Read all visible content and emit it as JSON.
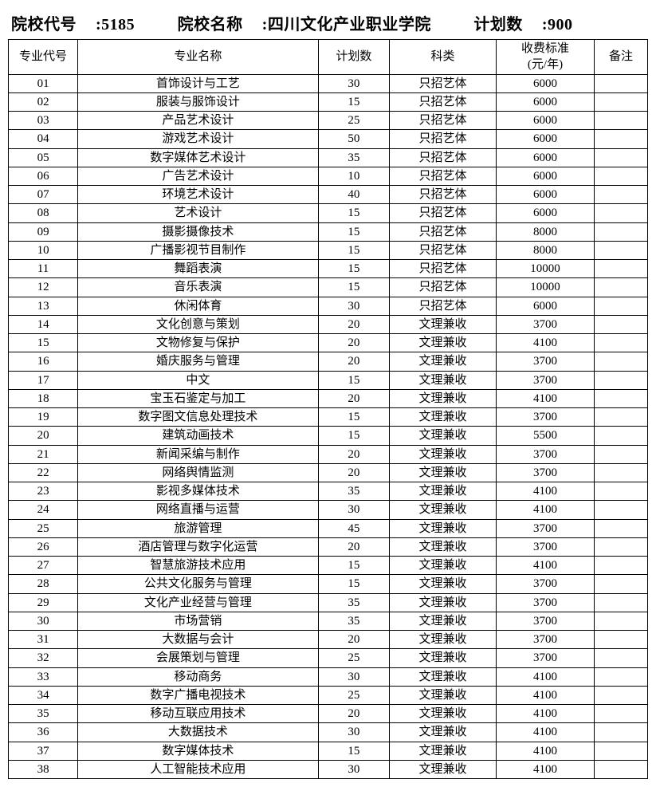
{
  "header": {
    "code_label": "院校代号",
    "code_value": "5185",
    "name_label": "院校名称",
    "name_value": "四川文化产业职业学院",
    "plan_label": "计划数",
    "plan_value": "900"
  },
  "columns": {
    "major_code": "专业代号",
    "major_name": "专业名称",
    "plan": "计划数",
    "category": "科类",
    "fee": "收费标准\n(元/年)",
    "note": "备注"
  },
  "rows": [
    {
      "code": "01",
      "name": "首饰设计与工艺",
      "plan": "30",
      "cat": "只招艺体",
      "fee": "6000",
      "note": ""
    },
    {
      "code": "02",
      "name": "服装与服饰设计",
      "plan": "15",
      "cat": "只招艺体",
      "fee": "6000",
      "note": ""
    },
    {
      "code": "03",
      "name": "产品艺术设计",
      "plan": "25",
      "cat": "只招艺体",
      "fee": "6000",
      "note": ""
    },
    {
      "code": "04",
      "name": "游戏艺术设计",
      "plan": "50",
      "cat": "只招艺体",
      "fee": "6000",
      "note": ""
    },
    {
      "code": "05",
      "name": "数字媒体艺术设计",
      "plan": "35",
      "cat": "只招艺体",
      "fee": "6000",
      "note": ""
    },
    {
      "code": "06",
      "name": "广告艺术设计",
      "plan": "10",
      "cat": "只招艺体",
      "fee": "6000",
      "note": ""
    },
    {
      "code": "07",
      "name": "环境艺术设计",
      "plan": "40",
      "cat": "只招艺体",
      "fee": "6000",
      "note": ""
    },
    {
      "code": "08",
      "name": "艺术设计",
      "plan": "15",
      "cat": "只招艺体",
      "fee": "6000",
      "note": ""
    },
    {
      "code": "09",
      "name": "摄影摄像技术",
      "plan": "15",
      "cat": "只招艺体",
      "fee": "8000",
      "note": ""
    },
    {
      "code": "10",
      "name": "广播影视节目制作",
      "plan": "15",
      "cat": "只招艺体",
      "fee": "8000",
      "note": ""
    },
    {
      "code": "11",
      "name": "舞蹈表演",
      "plan": "15",
      "cat": "只招艺体",
      "fee": "10000",
      "note": ""
    },
    {
      "code": "12",
      "name": "音乐表演",
      "plan": "15",
      "cat": "只招艺体",
      "fee": "10000",
      "note": ""
    },
    {
      "code": "13",
      "name": "休闲体育",
      "plan": "30",
      "cat": "只招艺体",
      "fee": "6000",
      "note": ""
    },
    {
      "code": "14",
      "name": "文化创意与策划",
      "plan": "20",
      "cat": "文理兼收",
      "fee": "3700",
      "note": ""
    },
    {
      "code": "15",
      "name": "文物修复与保护",
      "plan": "20",
      "cat": "文理兼收",
      "fee": "4100",
      "note": ""
    },
    {
      "code": "16",
      "name": "婚庆服务与管理",
      "plan": "20",
      "cat": "文理兼收",
      "fee": "3700",
      "note": ""
    },
    {
      "code": "17",
      "name": "中文",
      "plan": "15",
      "cat": "文理兼收",
      "fee": "3700",
      "note": ""
    },
    {
      "code": "18",
      "name": "宝玉石鉴定与加工",
      "plan": "20",
      "cat": "文理兼收",
      "fee": "4100",
      "note": ""
    },
    {
      "code": "19",
      "name": "数字图文信息处理技术",
      "plan": "15",
      "cat": "文理兼收",
      "fee": "3700",
      "note": ""
    },
    {
      "code": "20",
      "name": "建筑动画技术",
      "plan": "15",
      "cat": "文理兼收",
      "fee": "5500",
      "note": ""
    },
    {
      "code": "21",
      "name": "新闻采编与制作",
      "plan": "20",
      "cat": "文理兼收",
      "fee": "3700",
      "note": ""
    },
    {
      "code": "22",
      "name": "网络舆情监测",
      "plan": "20",
      "cat": "文理兼收",
      "fee": "3700",
      "note": ""
    },
    {
      "code": "23",
      "name": "影视多媒体技术",
      "plan": "35",
      "cat": "文理兼收",
      "fee": "4100",
      "note": ""
    },
    {
      "code": "24",
      "name": "网络直播与运营",
      "plan": "30",
      "cat": "文理兼收",
      "fee": "4100",
      "note": ""
    },
    {
      "code": "25",
      "name": "旅游管理",
      "plan": "45",
      "cat": "文理兼收",
      "fee": "3700",
      "note": ""
    },
    {
      "code": "26",
      "name": "酒店管理与数字化运营",
      "plan": "20",
      "cat": "文理兼收",
      "fee": "3700",
      "note": ""
    },
    {
      "code": "27",
      "name": "智慧旅游技术应用",
      "plan": "15",
      "cat": "文理兼收",
      "fee": "4100",
      "note": ""
    },
    {
      "code": "28",
      "name": "公共文化服务与管理",
      "plan": "15",
      "cat": "文理兼收",
      "fee": "3700",
      "note": ""
    },
    {
      "code": "29",
      "name": "文化产业经营与管理",
      "plan": "35",
      "cat": "文理兼收",
      "fee": "3700",
      "note": ""
    },
    {
      "code": "30",
      "name": "市场营销",
      "plan": "35",
      "cat": "文理兼收",
      "fee": "3700",
      "note": ""
    },
    {
      "code": "31",
      "name": "大数据与会计",
      "plan": "20",
      "cat": "文理兼收",
      "fee": "3700",
      "note": ""
    },
    {
      "code": "32",
      "name": "会展策划与管理",
      "plan": "25",
      "cat": "文理兼收",
      "fee": "3700",
      "note": ""
    },
    {
      "code": "33",
      "name": "移动商务",
      "plan": "30",
      "cat": "文理兼收",
      "fee": "4100",
      "note": ""
    },
    {
      "code": "34",
      "name": "数字广播电视技术",
      "plan": "25",
      "cat": "文理兼收",
      "fee": "4100",
      "note": ""
    },
    {
      "code": "35",
      "name": "移动互联应用技术",
      "plan": "20",
      "cat": "文理兼收",
      "fee": "4100",
      "note": ""
    },
    {
      "code": "36",
      "name": "大数据技术",
      "plan": "30",
      "cat": "文理兼收",
      "fee": "4100",
      "note": ""
    },
    {
      "code": "37",
      "name": "数字媒体技术",
      "plan": "15",
      "cat": "文理兼收",
      "fee": "4100",
      "note": ""
    },
    {
      "code": "38",
      "name": "人工智能技术应用",
      "plan": "30",
      "cat": "文理兼收",
      "fee": "4100",
      "note": ""
    }
  ]
}
